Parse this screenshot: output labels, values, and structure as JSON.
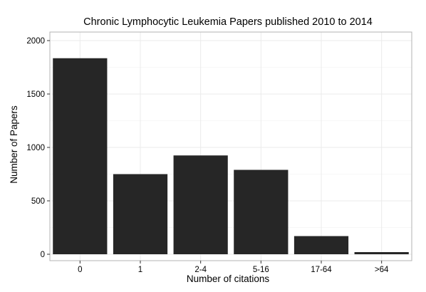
{
  "chart_data": {
    "type": "bar",
    "title": "Chronic Lymphocytic Leukemia Papers published 2010 to 2014",
    "xlabel": "Number of citations",
    "ylabel": "Number of Papers",
    "categories": [
      "0",
      "1",
      "2-4",
      "5-16",
      "17-64",
      ">64"
    ],
    "values": [
      1835,
      750,
      925,
      790,
      170,
      20
    ],
    "ylim": [
      -60,
      2080
    ],
    "yticks": [
      0,
      500,
      1000,
      1500,
      2000
    ],
    "ytick_labels": [
      "0",
      "500",
      "1000",
      "1500",
      "2000"
    ],
    "grid": true,
    "bar_color": "#262626",
    "background_color": "#ffffff",
    "grid_color": "#ebebeb"
  }
}
